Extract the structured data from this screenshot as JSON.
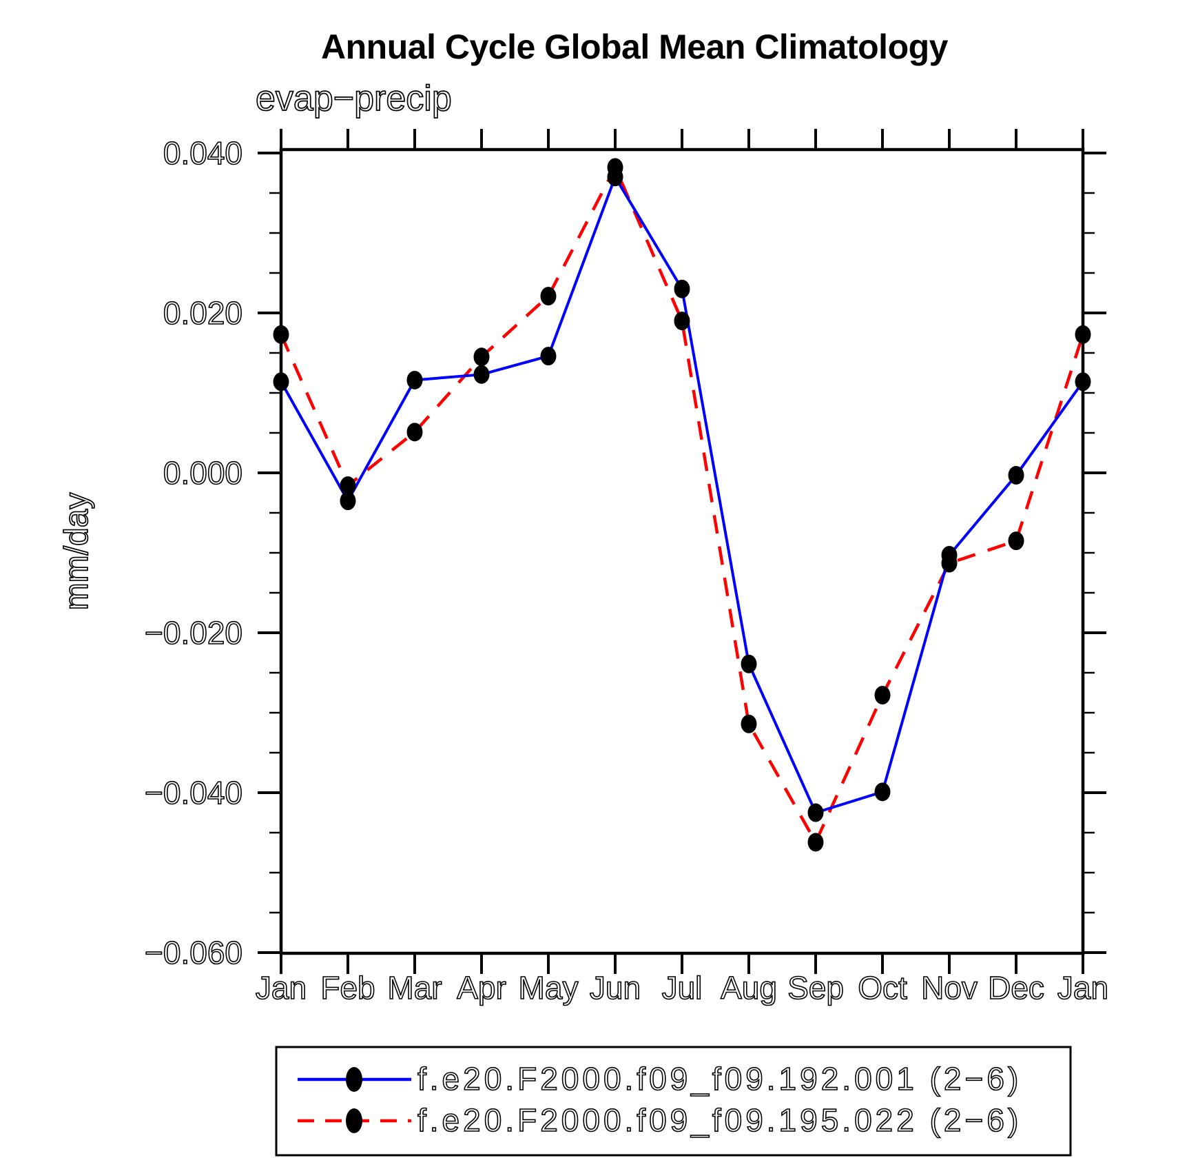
{
  "title": "Annual Cycle Global Mean Climatology",
  "subtitle": "evap−precip",
  "ylabel": "mm/day",
  "colors": {
    "background": "#ffffff",
    "axis": "#000000",
    "series1": "#0000ff",
    "series2": "#ff0000",
    "marker": "#000000"
  },
  "chart_data": {
    "type": "line",
    "title": "Annual Cycle Global Mean Climatology",
    "subtitle": "evap−precip",
    "xlabel": "",
    "ylabel": "mm/day",
    "unit": "mm/day",
    "x_categories": [
      "Jan",
      "Feb",
      "Mar",
      "Apr",
      "May",
      "Jun",
      "Jul",
      "Aug",
      "Sep",
      "Oct",
      "Nov",
      "Dec",
      "Jan"
    ],
    "ylim": [
      -0.06,
      0.04
    ],
    "y_major_step": 0.02,
    "y_minor_step": 0.005,
    "y_major_ticks": [
      0.04,
      0.02,
      0.0,
      -0.02,
      -0.04,
      -0.06
    ],
    "y_tick_labels": [
      "0.040",
      "0.020",
      "0.000",
      "−0.020",
      "−0.040",
      "−0.060"
    ],
    "grid": false,
    "legend_position": "bottom",
    "series": [
      {
        "name": "f.e20.F2000.f09_f09.192.001 (2−6)",
        "color": "#0000ff",
        "line_style": "solid",
        "marker": "filled-circle",
        "marker_color": "#000000",
        "values": [
          0.0114,
          -0.0035,
          0.0116,
          0.0123,
          0.0146,
          0.037,
          0.023,
          -0.0239,
          -0.0425,
          -0.0399,
          -0.0103,
          -0.0003,
          0.0114
        ]
      },
      {
        "name": "f.e20.F2000.f09_f09.195.022 (2−6)",
        "color": "#ff0000",
        "line_style": "dashed",
        "marker": "filled-circle",
        "marker_color": "#000000",
        "values": [
          0.0173,
          -0.0016,
          0.0051,
          0.0145,
          0.0221,
          0.0382,
          0.019,
          -0.0314,
          -0.0462,
          -0.0278,
          -0.0113,
          -0.0085,
          0.0173
        ]
      }
    ]
  }
}
